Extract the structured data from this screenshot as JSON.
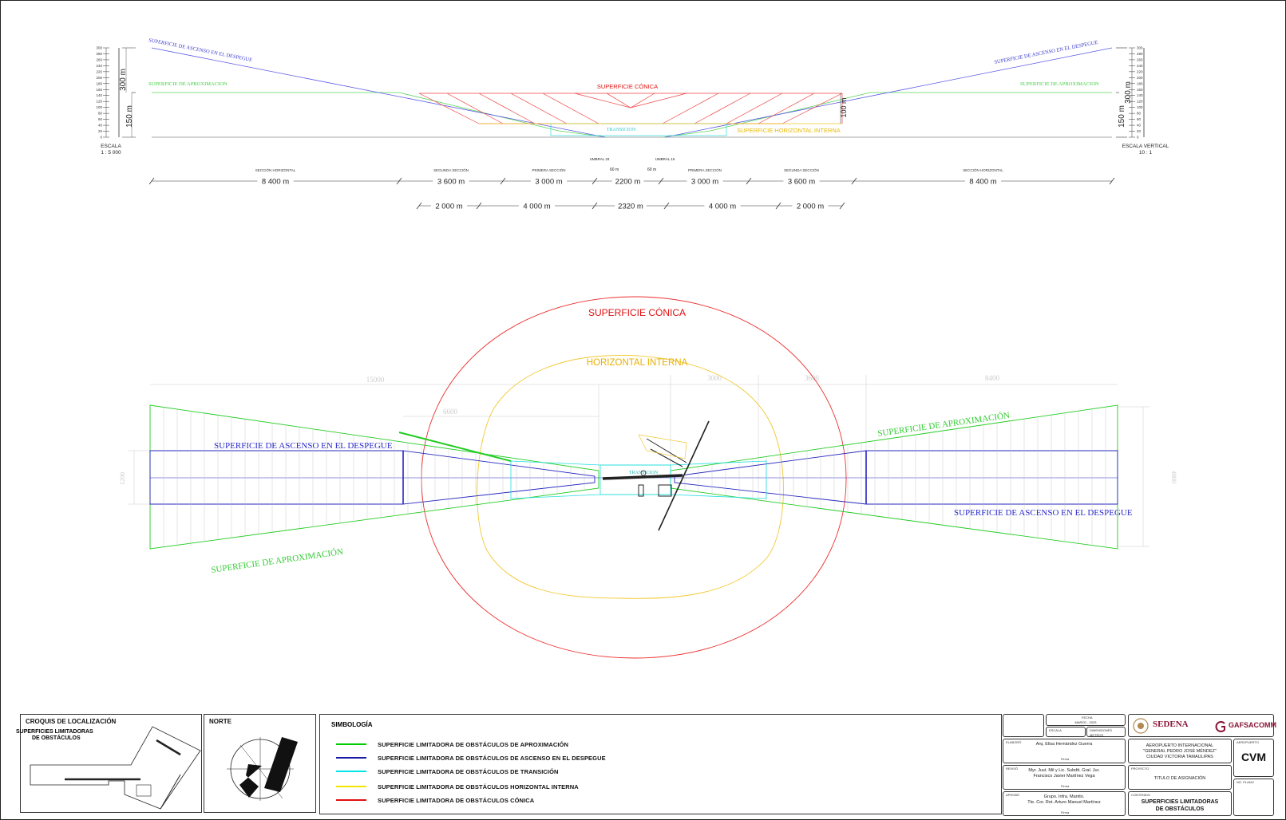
{
  "profile": {
    "left_scale": {
      "ticks": [
        "300",
        "280",
        "260",
        "240",
        "220",
        "200",
        "180",
        "160",
        "140",
        "120",
        "100",
        "80",
        "60",
        "40",
        "20",
        "0"
      ],
      "label_300": "300 m",
      "label_150": "150 m",
      "caption": "ESCALA",
      "ratio": "1 : 5 000"
    },
    "right_scale": {
      "ticks": [
        "300",
        "280",
        "260",
        "240",
        "220",
        "200",
        "180",
        "160",
        "140",
        "120",
        "100",
        "80",
        "60",
        "40",
        "20",
        "0"
      ],
      "label_300": "300 m",
      "label_150": "150 m",
      "caption": "ESCALA VERTICAL",
      "ratio": "10 : 1"
    },
    "labels": {
      "ascenso_left": "SUPERFICIE DE ASCENSO EN EL DESPEGUE",
      "ascenso_right": "SUPERFICIE DE ASCENSO EN EL DESPEGUE",
      "aprox_left": "SUPERFICIE DE APROXIMACION",
      "aprox_right": "SUPERFICIE DE APROXIMACION",
      "conica": "SUPERFICIE CÓNICA",
      "transicion": "TRANSICION",
      "horizontal": "SUPERFICIE HORIZONTAL INTERNA",
      "height_100": "100 m"
    },
    "umbral_33": "UMBRAL 33",
    "umbral_15": "UMBRAL 15",
    "small_60_left": "60 m",
    "small_60_right": "60 m",
    "sections_row1": [
      {
        "name": "SECCIÓN HORIZONTAL",
        "value": "8 400 m"
      },
      {
        "name": "SEGUNDA SECCIÓN",
        "value": "3 600 m"
      },
      {
        "name": "PRIMERA SECCIÓN",
        "value": "3 000 m"
      },
      {
        "name": "",
        "value": "2200 m"
      },
      {
        "name": "PRIMERA SECCIÓN",
        "value": "3 000 m"
      },
      {
        "name": "SEGUNDA SECCIÓN",
        "value": "3 600 m"
      },
      {
        "name": "SECCIÓN HORIZONTAL",
        "value": "8 400 m"
      }
    ],
    "sections_row2": [
      "2 000 m",
      "4 000 m",
      "2320 m",
      "4 000 m",
      "2 000 m"
    ]
  },
  "plan": {
    "conica": "SUPERFICIE CÓNICA",
    "horizontal": "HORIZONTAL INTERNA",
    "ascenso_left": "SUPERFICIE DE ASCENSO EN EL DESPEGUE",
    "ascenso_right": "SUPERFICIE DE ASCENSO EN EL DESPEGUE",
    "aprox_left": "SUPERFICIE DE APROXIMACIÓN",
    "aprox_right": "SUPERFICIE DE APROXIMACIÓN",
    "transicion": "TRANSICION",
    "dim_15000": "15000",
    "dim_6600": "6600",
    "dim_3000": "3000",
    "dim_3600": "3600",
    "dim_8400": "8400",
    "dim_1200": "1200",
    "dim_4800": "4800"
  },
  "footer": {
    "croquis": {
      "title": "CROQUIS DE LOCALIZACIÓN",
      "subtitle_1": "SUPERFICIES LIMITADORAS",
      "subtitle_2": "DE OBSTÁCULOS"
    },
    "norte": {
      "title": "NORTE"
    },
    "simbologia": {
      "title": "SIMBOLOGÍA",
      "items": [
        {
          "label": "SUPERFICIE LIMITADORA DE OBSTÁCULOS DE APROXIMACIÓN",
          "color": "#00cc00"
        },
        {
          "label": "SUPERFICIE LIMITADORA DE OBSTÁCULOS DE ASCENSO EN EL DESPEGUE",
          "color": "#1a1aa6"
        },
        {
          "label": "SUPERFICIE LIMITADORA DE OBSTÁCULOS DE TRANSICIÓN",
          "color": "#00e5e5"
        },
        {
          "label": "SUPERFICIE LIMITADORA DE OBSTÁCULOS HORIZONTAL INTERNA",
          "color": "#f2e600"
        },
        {
          "label": "SUPERFICIE LIMITADORA DE OBSTÁCULOS CÓNICA",
          "color": "#e01010"
        }
      ]
    },
    "titleblock": {
      "fecha_label": "FECHA",
      "fecha": "MARZO - 2023",
      "escala_label": "ESCALA",
      "dimensiones_label": "DIMENSIONES",
      "dimensiones": "METROS",
      "elaboro_label": "ELABORÓ",
      "elaboro": "Arq. Elisa Hernández Guerra",
      "firma": "Firma",
      "reviso_label": "REVISÓ",
      "reviso_1": "Myr. Just. Mil y Lic. Subdtt. Gral. Jur.",
      "reviso_2": "Francisco Javier Martínez Vega",
      "aprobo_label": "APROBÓ",
      "aprobo_1": "Grupo. Infra. Mantto.",
      "aprobo_2": "Tte. Cor. Ret. Arturo Manuel Martínez",
      "sedena": "SEDENA",
      "gafsacomm": "GAFSACOMM",
      "aeropuerto_1": "AEROPUERTO INTERNACIONAL",
      "aeropuerto_2": "\"GENERAL PEDRO JOSÉ MÉNDEZ\"",
      "aeropuerto_3": "CIUDAD VICTORIA TAMAULIPAS",
      "aeropuerto_label": "AEROPUERTO",
      "code": "CVM",
      "proyecto_label": "PROYECTO",
      "proyecto": "TITULO DE ASIGNACIÓN",
      "no_plano_label": "NO. PLANO",
      "contenido_label": "CONTENIDO",
      "contenido_1": "SUPERFICIES LIMITADORAS",
      "contenido_2": "DE OBSTÁCULOS"
    }
  }
}
